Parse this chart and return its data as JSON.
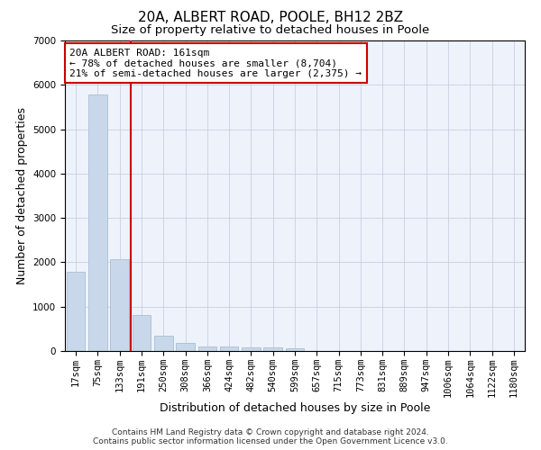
{
  "title_line1": "20A, ALBERT ROAD, POOLE, BH12 2BZ",
  "title_line2": "Size of property relative to detached houses in Poole",
  "xlabel": "Distribution of detached houses by size in Poole",
  "ylabel": "Number of detached properties",
  "bar_color": "#c8d8ea",
  "bar_edge_color": "#a8c0d4",
  "categories": [
    "17sqm",
    "75sqm",
    "133sqm",
    "191sqm",
    "250sqm",
    "308sqm",
    "366sqm",
    "424sqm",
    "482sqm",
    "540sqm",
    "599sqm",
    "657sqm",
    "715sqm",
    "773sqm",
    "831sqm",
    "889sqm",
    "947sqm",
    "1006sqm",
    "1064sqm",
    "1122sqm",
    "1180sqm"
  ],
  "values": [
    1780,
    5780,
    2060,
    820,
    340,
    185,
    110,
    100,
    80,
    75,
    55,
    0,
    0,
    0,
    0,
    0,
    0,
    0,
    0,
    0,
    0
  ],
  "ylim": [
    0,
    7000
  ],
  "yticks": [
    0,
    1000,
    2000,
    3000,
    4000,
    5000,
    6000,
    7000
  ],
  "vline_x_index": 2,
  "vline_color": "#cc0000",
  "annotation_text": "20A ALBERT ROAD: 161sqm\n← 78% of detached houses are smaller (8,704)\n21% of semi-detached houses are larger (2,375) →",
  "annotation_box_color": "#cc0000",
  "footer_line1": "Contains HM Land Registry data © Crown copyright and database right 2024.",
  "footer_line2": "Contains public sector information licensed under the Open Government Licence v3.0.",
  "bg_color": "#eef2fb",
  "grid_color": "#c8d0e0",
  "title_fontsize": 11,
  "subtitle_fontsize": 9.5,
  "axis_label_fontsize": 9,
  "tick_fontsize": 7.5,
  "annotation_fontsize": 8,
  "footer_fontsize": 6.5
}
